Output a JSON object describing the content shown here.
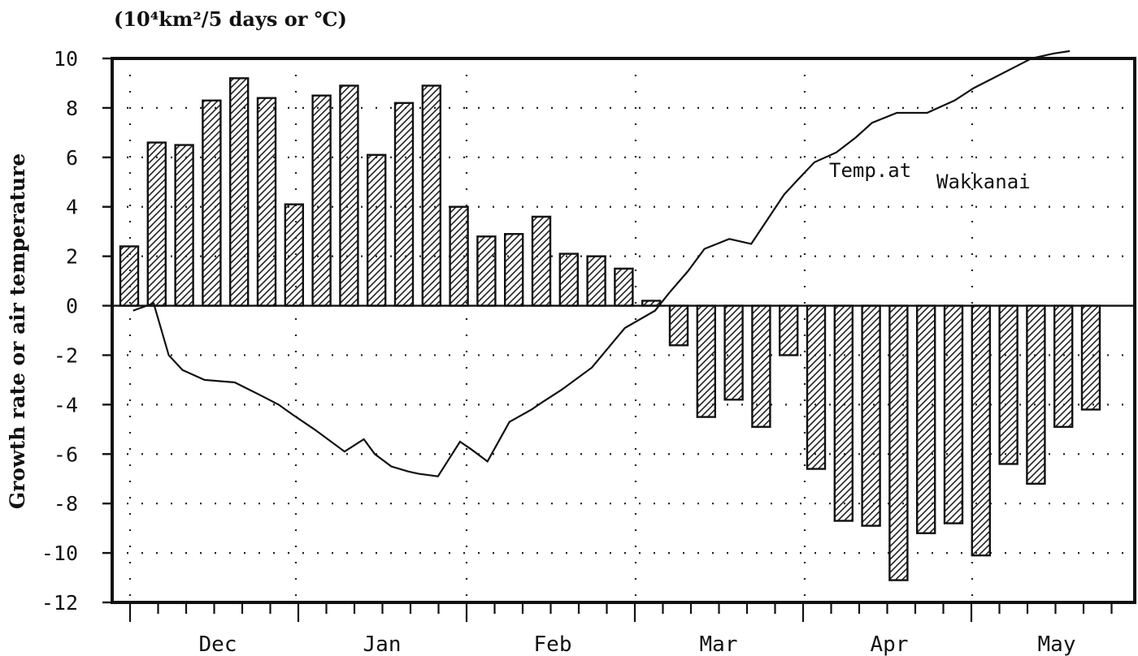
{
  "chart_data": {
    "type": "bar",
    "unit_label": "(10⁴km²/5 days   or ℃)",
    "ylabel": "Growth rate or air temperature",
    "ylim": [
      -12,
      10
    ],
    "yticks": [
      10,
      8,
      6,
      4,
      2,
      0,
      -2,
      -4,
      -6,
      -8,
      -10,
      -12
    ],
    "month_labels": [
      "Dec",
      "Jan",
      "Feb",
      "Mar",
      "Apr",
      "May"
    ],
    "grid": true,
    "series": [
      {
        "kind": "bar",
        "pattern": "diagonal-hatch",
        "values": [
          2.4,
          6.6,
          6.5,
          8.3,
          9.2,
          8.4,
          4.1,
          8.5,
          8.9,
          6.1,
          8.2,
          8.9,
          4.0,
          2.8,
          2.9,
          3.6,
          2.1,
          2.0,
          1.5,
          0.2,
          -1.6,
          -4.5,
          -3.8,
          -4.9,
          -2.0,
          -6.6,
          -8.7,
          -8.9,
          -11.1,
          -9.2,
          -8.8,
          -10.1,
          -6.4,
          -7.2,
          -4.9,
          -4.2
        ]
      },
      {
        "kind": "line",
        "name": "Temp.at Wakkanai",
        "x": [
          0.7,
          1.45,
          2.0,
          2.5,
          3.3,
          4.4,
          5.3,
          6.0,
          6.5,
          7.3,
          8.4,
          9.1,
          9.5,
          10.1,
          10.7,
          11.1,
          11.8,
          12.6,
          13.0,
          13.6,
          14.4,
          15.2,
          15.6,
          16.3,
          17.4,
          18.6,
          19.7,
          20.2,
          20.9,
          21.5,
          22.4,
          23.2,
          24.4,
          24.9,
          25.5,
          26.3,
          27.0,
          27.6,
          28.5,
          29.6,
          30.6,
          31.3,
          32.0,
          32.7,
          33.4,
          34.2,
          34.8
        ],
        "y": [
          -0.2,
          0.1,
          -2.0,
          -2.6,
          -3.0,
          -3.1,
          -3.6,
          -4.0,
          -4.4,
          -5.0,
          -5.9,
          -5.4,
          -6.0,
          -6.5,
          -6.7,
          -6.8,
          -6.9,
          -5.5,
          -5.8,
          -6.3,
          -4.7,
          -4.2,
          -3.9,
          -3.4,
          -2.5,
          -0.9,
          -0.2,
          0.5,
          1.4,
          2.3,
          2.7,
          2.5,
          4.5,
          5.1,
          5.8,
          6.2,
          6.8,
          7.4,
          7.8,
          7.8,
          8.3,
          8.8,
          9.2,
          9.6,
          10.0,
          10.2,
          10.3
        ]
      }
    ]
  }
}
